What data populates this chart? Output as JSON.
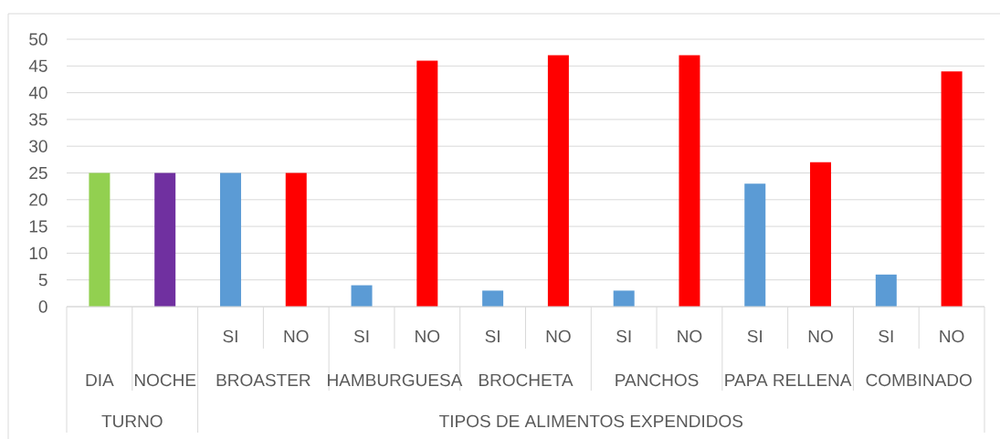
{
  "chart_data": {
    "type": "bar",
    "categories": [
      null,
      null,
      "SI",
      "NO",
      "SI",
      "NO",
      "SI",
      "NO",
      "SI",
      "NO",
      "SI",
      "NO",
      "SI",
      "NO"
    ],
    "values": [
      25,
      25,
      25,
      25,
      4,
      46,
      3,
      47,
      3,
      47,
      23,
      27,
      6,
      44
    ],
    "colors": [
      "#92d050",
      "#7030a0",
      "#5b9bd5",
      "#ff0000",
      "#5b9bd5",
      "#ff0000",
      "#5b9bd5",
      "#ff0000",
      "#5b9bd5",
      "#ff0000",
      "#5b9bd5",
      "#ff0000",
      "#5b9bd5",
      "#ff0000"
    ],
    "ylim": [
      0,
      50
    ],
    "yticks": [
      0,
      5,
      10,
      15,
      20,
      25,
      30,
      35,
      40,
      45,
      50
    ],
    "grid": "y",
    "annotations": [
      "DIA",
      "NOCHE",
      "BROASTER",
      "HAMBURGUESA",
      "BROCHETA",
      "PANCHOS",
      "PAPA RELLENA",
      "COMBINADO",
      "TURNO",
      "TIPOS DE ALIMENTOS EXPENDIDOS"
    ]
  }
}
